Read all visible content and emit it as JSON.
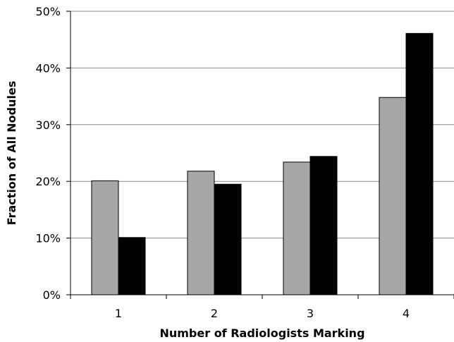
{
  "chart_data": {
    "type": "bar",
    "title": "",
    "xlabel": "Number of Radiologists Marking",
    "ylabel": "Fraction of All Nodules",
    "categories": [
      "1",
      "2",
      "3",
      "4"
    ],
    "series": [
      {
        "values": [
          20.1,
          21.8,
          23.4,
          34.8
        ],
        "color": "#a6a6a6"
      },
      {
        "values": [
          10.1,
          19.5,
          24.4,
          46.1
        ],
        "color": "#000000"
      }
    ],
    "ylim": [
      0,
      50
    ],
    "yticks": [
      0,
      10,
      20,
      30,
      40,
      50
    ],
    "ytick_labels": [
      "0%",
      "10%",
      "20%",
      "30%",
      "40%",
      "50%"
    ],
    "grid": true,
    "legend": "none"
  }
}
